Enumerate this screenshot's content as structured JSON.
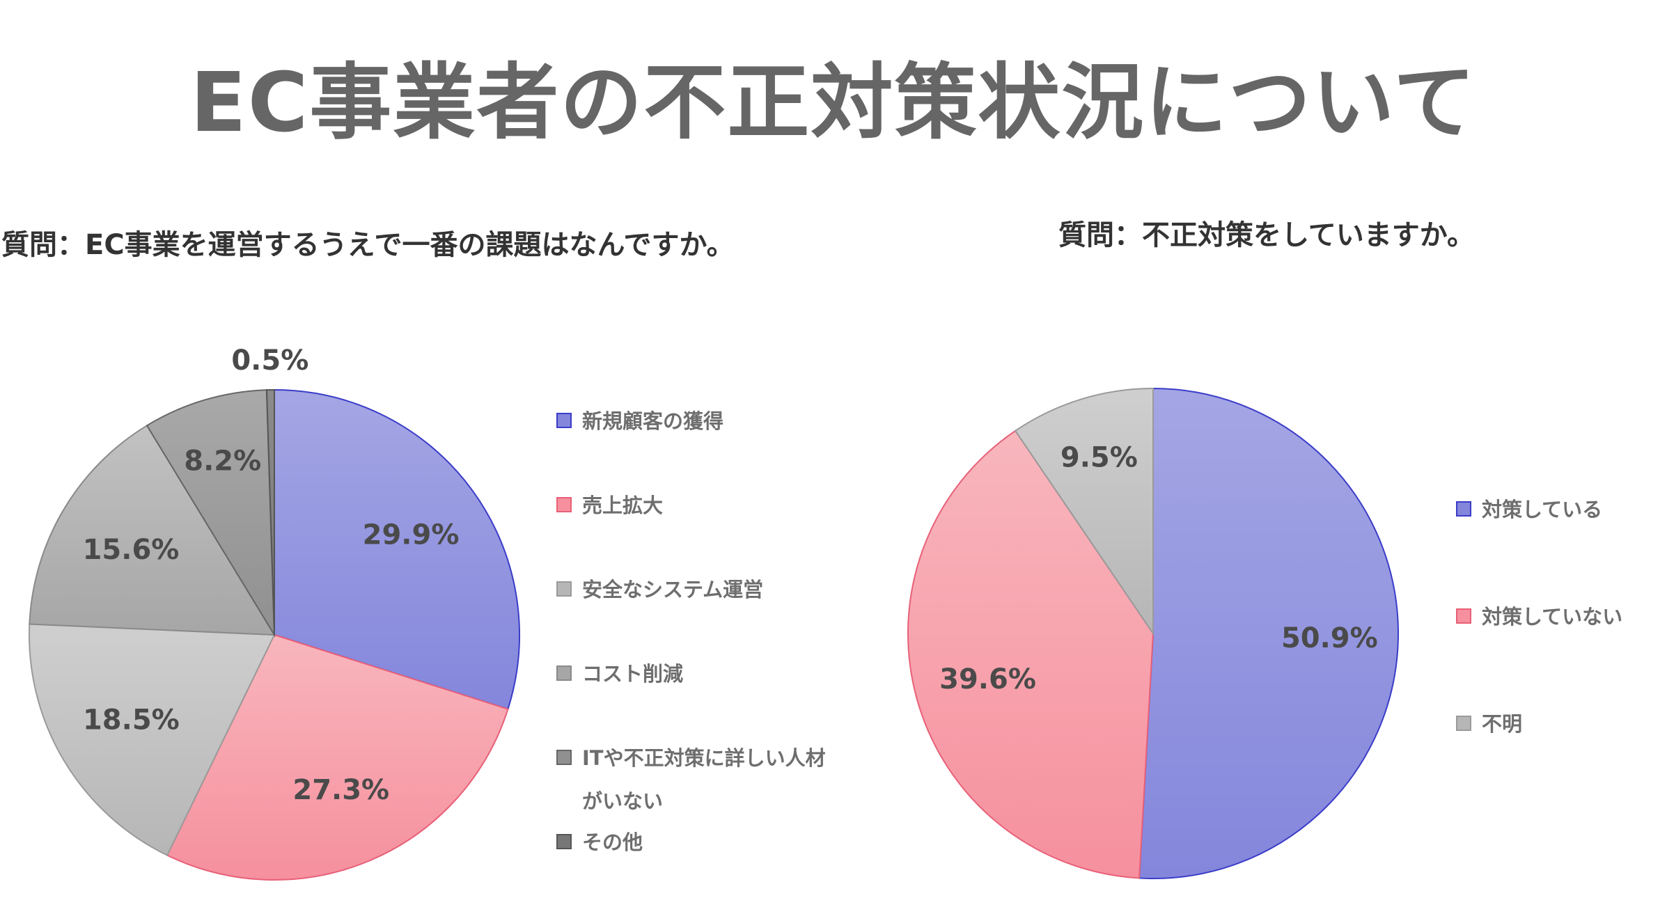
{
  "title": "EC事業者の不正対策状況について",
  "chart_data": [
    {
      "type": "pie",
      "title": "質問：EC事業を運営するうえで一番の課題はなんですか。",
      "slices": [
        {
          "label": "新規顧客の獲得",
          "value": 29.9,
          "value_label": "29.9%",
          "color_top": "#a4a6e4",
          "color_bottom": "#8486dc",
          "stroke": "#3a3cc8"
        },
        {
          "label": "売上拡大",
          "value": 27.3,
          "value_label": "27.3%",
          "color_top": "#f8b6bd",
          "color_bottom": "#f6909e",
          "stroke": "#e86078"
        },
        {
          "label": "安全なシステム運営",
          "value": 18.5,
          "value_label": "18.5%",
          "color_top": "#cfcfcf",
          "color_bottom": "#b6b6b6",
          "stroke": "#9a9a9a"
        },
        {
          "label": "コスト削減",
          "value": 15.6,
          "value_label": "15.6%",
          "color_top": "#c2c2c2",
          "color_bottom": "#a6a6a6",
          "stroke": "#8a8a8a"
        },
        {
          "label": "ITや不正対策に詳しい人材がいない",
          "label_lines": [
            "ITや不正対策に詳しい人材",
            "がいない"
          ],
          "value": 8.2,
          "value_label": "8.2%",
          "color_top": "#a9a9a9",
          "color_bottom": "#909090",
          "stroke": "#666666"
        },
        {
          "label": "その他",
          "value": 0.5,
          "value_label": "0.5%",
          "color_top": "#8c8c8c",
          "color_bottom": "#777777",
          "stroke": "#555555"
        }
      ]
    },
    {
      "type": "pie",
      "title": "質問：不正対策をしていますか。",
      "slices": [
        {
          "label": "対策している",
          "value": 50.9,
          "value_label": "50.9%",
          "color_top": "#a4a6e4",
          "color_bottom": "#8486dc",
          "stroke": "#3a3cc8"
        },
        {
          "label": "対策していない",
          "value": 39.6,
          "value_label": "39.6%",
          "color_top": "#f8b6bd",
          "color_bottom": "#f6909e",
          "stroke": "#e86078"
        },
        {
          "label": "不明",
          "value": 9.5,
          "value_label": "9.5%",
          "color_top": "#cfcfcf",
          "color_bottom": "#b6b6b6",
          "stroke": "#9a9a9a"
        }
      ]
    }
  ]
}
